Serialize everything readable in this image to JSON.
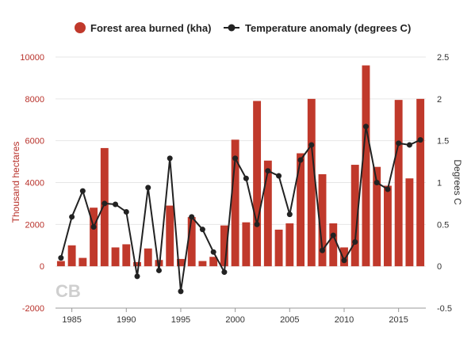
{
  "chart_data": {
    "type": "bar+line",
    "x": [
      1984,
      1985,
      1986,
      1987,
      1988,
      1989,
      1990,
      1991,
      1992,
      1993,
      1994,
      1995,
      1996,
      1997,
      1998,
      1999,
      2000,
      2001,
      2002,
      2003,
      2004,
      2005,
      2006,
      2007,
      2008,
      2009,
      2010,
      2011,
      2012,
      2013,
      2014,
      2015,
      2016,
      2017
    ],
    "series": [
      {
        "name": "Forest area burned (kha)",
        "type": "bar",
        "axis": "left",
        "color": "#c0392b",
        "values": [
          250,
          1000,
          400,
          2800,
          5650,
          900,
          1050,
          200,
          850,
          300,
          2900,
          350,
          2350,
          250,
          450,
          1950,
          6050,
          2100,
          7900,
          5050,
          1750,
          2050,
          5400,
          8000,
          4400,
          2050,
          900,
          4850,
          9600,
          4750,
          3850,
          7950,
          4200,
          8000
        ]
      },
      {
        "name": "Temperature anomaly (degrees C)",
        "type": "line",
        "axis": "right",
        "color": "#222222",
        "values": [
          0.1,
          0.59,
          0.9,
          0.47,
          0.75,
          0.74,
          0.65,
          -0.12,
          0.94,
          -0.05,
          1.29,
          -0.3,
          0.59,
          0.44,
          0.17,
          -0.07,
          1.29,
          1.05,
          0.5,
          1.14,
          1.08,
          0.62,
          1.27,
          1.45,
          0.19,
          0.37,
          0.07,
          0.29,
          1.67,
          1.0,
          0.92,
          1.47,
          1.45,
          1.51
        ]
      }
    ],
    "y_left": {
      "label": "Thousand hectares",
      "lim": [
        -2000,
        10000
      ],
      "ticks": [
        -2000,
        0,
        2000,
        4000,
        6000,
        8000,
        10000
      ],
      "tick_labels": [
        "-2000",
        "0",
        "2000",
        "4000",
        "6000",
        "8000",
        "10000"
      ]
    },
    "y_right": {
      "label": "Degrees C",
      "lim": [
        -0.5,
        2.5
      ],
      "ticks": [
        -0.5,
        0,
        0.5,
        1,
        1.5,
        2,
        2.5
      ],
      "tick_labels": [
        "-0.5",
        "0",
        "0.5",
        "1",
        "1.5",
        "2",
        "2.5"
      ]
    },
    "x_axis": {
      "lim": [
        1983.5,
        2017.5
      ],
      "ticks": [
        1985,
        1990,
        1995,
        2000,
        2005,
        2010,
        2015
      ],
      "tick_labels": [
        "1985",
        "1990",
        "1995",
        "2000",
        "2005",
        "2010",
        "2015"
      ]
    },
    "grid": true,
    "legend_position": "top-center"
  },
  "watermark": "CB"
}
